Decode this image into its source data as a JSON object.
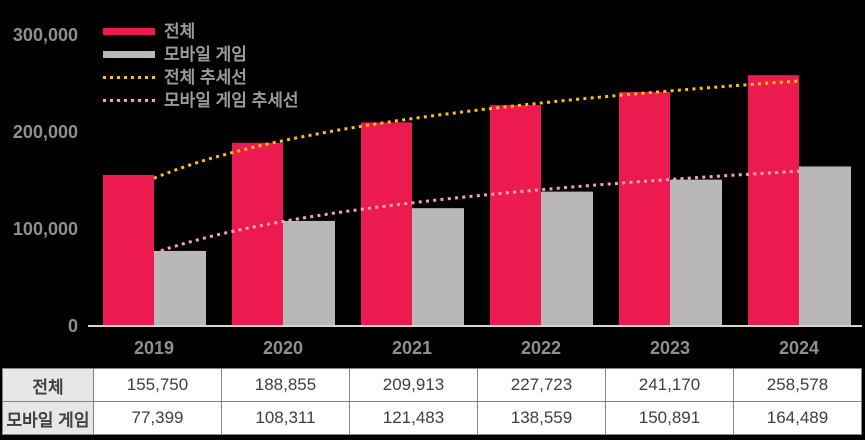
{
  "chart_data": {
    "type": "bar",
    "title": "",
    "categories": [
      "2019",
      "2020",
      "2021",
      "2022",
      "2023",
      "2024"
    ],
    "series": [
      {
        "name": "전체",
        "color": "#EC1A4F",
        "values": [
          155750,
          188855,
          209913,
          227723,
          241170,
          258578
        ]
      },
      {
        "name": "모바일 게임",
        "color": "#B9B7BA",
        "values": [
          77399,
          108311,
          121483,
          138559,
          150891,
          164489
        ]
      }
    ],
    "trendlines": [
      {
        "name": "전체 추세선",
        "series_index": 0,
        "fit": "logarithmic",
        "color": "#FFC011",
        "style": "dotted"
      },
      {
        "name": "모바일 게임 추세선",
        "series_index": 1,
        "fit": "logarithmic",
        "color": "#F2A4B8",
        "style": "dotted"
      }
    ],
    "y_axis": {
      "tick_labels": [
        "0",
        "100,000",
        "200,000",
        "300,000"
      ],
      "tick_values": [
        0,
        100000,
        200000,
        300000
      ],
      "min": 0,
      "max": 300000
    },
    "grid": false,
    "legend_position": "top-left-inside",
    "background": "#000000"
  },
  "legend": {
    "items": [
      {
        "label": "전체",
        "swatch": "solid-red-line"
      },
      {
        "label": "모바일 게임",
        "swatch": "solid-gray-line"
      },
      {
        "label": "전체 추세선",
        "swatch": "dotted-yellow-line"
      },
      {
        "label": "모바일 게임 추세선",
        "swatch": "dotted-pink-line"
      }
    ]
  },
  "table": {
    "columns": [
      "2019",
      "2020",
      "2021",
      "2022",
      "2023",
      "2024"
    ],
    "row_headers": [
      "전체",
      "모바일 게임"
    ],
    "rows": [
      [
        "155,750",
        "188,855",
        "209,913",
        "227,723",
        "241,170",
        "258,578"
      ],
      [
        "77,399",
        "108,311",
        "121,483",
        "138,559",
        "150,891",
        "164,489"
      ]
    ]
  },
  "colors": {
    "background": "#000000",
    "bar_total": "#EC1A4F",
    "bar_mobile": "#B9B7BA",
    "trend_total": "#FFC011",
    "trend_mobile": "#F2A4B8",
    "axis_line": "#D6D4D6",
    "axis_text": "#8F8F8F",
    "legend_text": "#9B9B9B",
    "table_border": "#848484",
    "table_header_bg": "#E8E6E7",
    "table_text": "#3F3F3F"
  }
}
